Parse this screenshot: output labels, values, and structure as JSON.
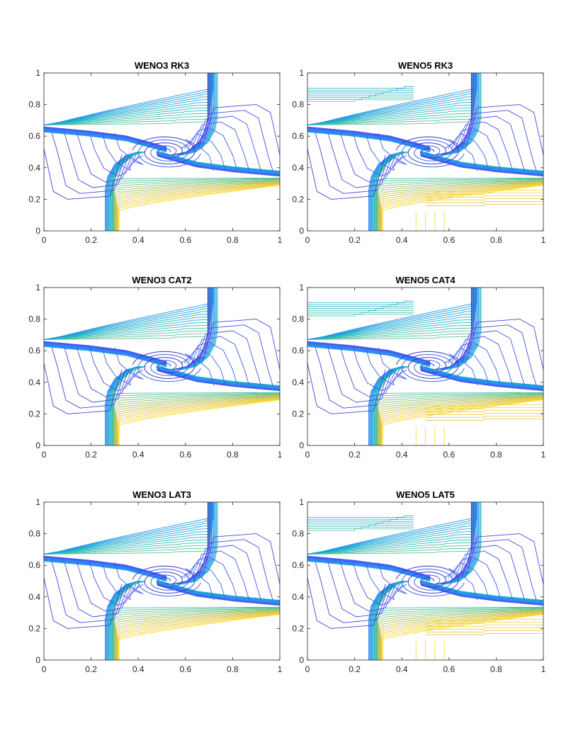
{
  "figure": {
    "description_note": "",
    "colors": [
      "#3e26a8",
      "#4352ef",
      "#2d85f7",
      "#16a5d8",
      "#2bbab9",
      "#6bc489",
      "#b6c05b",
      "#eec53b",
      "#f9e21f"
    ]
  },
  "chart_data": [
    {
      "type": "contour",
      "title": "WENO3 RK3",
      "xlim": [
        0,
        1
      ],
      "ylim": [
        0,
        1
      ],
      "xticks": [
        "0",
        "0.2",
        "0.4",
        "0.6",
        "0.8",
        "1"
      ],
      "yticks": [
        "0",
        "0.2",
        "0.4",
        "0.6",
        "0.8",
        "1"
      ],
      "noise": false
    },
    {
      "type": "contour",
      "title": "WENO5 RK3",
      "xlim": [
        0,
        1
      ],
      "ylim": [
        0,
        1
      ],
      "xticks": [
        "0",
        "0.2",
        "0.4",
        "0.6",
        "0.8",
        "1"
      ],
      "yticks": [
        "0",
        "0.2",
        "0.4",
        "0.6",
        "0.8",
        "1"
      ],
      "noise": true
    },
    {
      "type": "contour",
      "title": "WENO3 CAT2",
      "xlim": [
        0,
        1
      ],
      "ylim": [
        0,
        1
      ],
      "xticks": [
        "0",
        "0.2",
        "0.4",
        "0.6",
        "0.8",
        "1"
      ],
      "yticks": [
        "0",
        "0.2",
        "0.4",
        "0.6",
        "0.8",
        "1"
      ],
      "noise": false
    },
    {
      "type": "contour",
      "title": "WENO5 CAT4",
      "xlim": [
        0,
        1
      ],
      "ylim": [
        0,
        1
      ],
      "xticks": [
        "0",
        "0.2",
        "0.4",
        "0.6",
        "0.8",
        "1"
      ],
      "yticks": [
        "0",
        "0.2",
        "0.4",
        "0.6",
        "0.8",
        "1"
      ],
      "noise": true
    },
    {
      "type": "contour",
      "title": "WENO3 LAT3",
      "xlim": [
        0,
        1
      ],
      "ylim": [
        0,
        1
      ],
      "xticks": [
        "0",
        "0.2",
        "0.4",
        "0.6",
        "0.8",
        "1"
      ],
      "yticks": [
        "0",
        "0.2",
        "0.4",
        "0.6",
        "0.8",
        "1"
      ],
      "noise": false
    },
    {
      "type": "contour",
      "title": "WENO5 LAT5",
      "xlim": [
        0,
        1
      ],
      "ylim": [
        0,
        1
      ],
      "xticks": [
        "0",
        "0.2",
        "0.4",
        "0.6",
        "0.8",
        "1"
      ],
      "yticks": [
        "0",
        "0.2",
        "0.4",
        "0.6",
        "0.8",
        "1"
      ],
      "noise": true
    }
  ]
}
